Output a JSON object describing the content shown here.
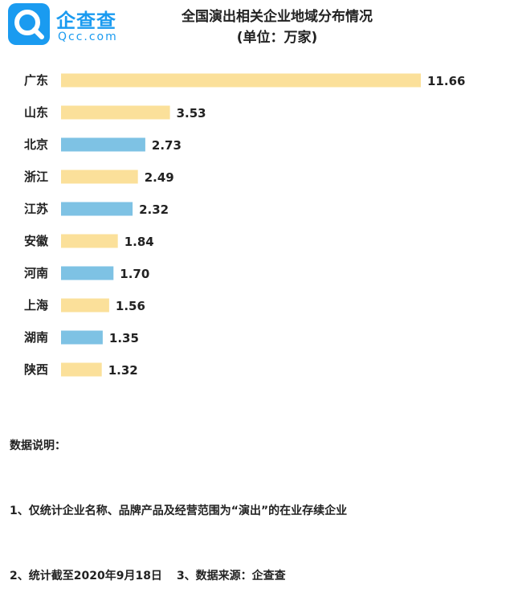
{
  "brand": {
    "name": "企查查",
    "domain": "Qcc.com",
    "icon": "magnifier-logo-icon",
    "color": "#1a9bf0"
  },
  "header": {
    "title": "全国演出相关企业地域分布情况",
    "subtitle": "(单位：万家)"
  },
  "chart_data": {
    "type": "bar",
    "orientation": "horizontal",
    "title": "全国演出相关企业地域分布情况",
    "subtitle": "(单位：万家)",
    "categories": [
      "广东",
      "山东",
      "北京",
      "浙江",
      "江苏",
      "安徽",
      "河南",
      "上海",
      "湖南",
      "陕西"
    ],
    "values": [
      11.66,
      3.53,
      2.73,
      2.49,
      2.32,
      1.84,
      1.7,
      1.56,
      1.35,
      1.32
    ],
    "value_labels": [
      "11.66",
      "3.53",
      "2.73",
      "2.49",
      "2.32",
      "1.84",
      "1.70",
      "1.56",
      "1.35",
      "1.32"
    ],
    "colors": [
      "#fbe09a",
      "#fbe09a",
      "#7ec2e4",
      "#fbe09a",
      "#7ec2e4",
      "#fbe09a",
      "#7ec2e4",
      "#fbe09a",
      "#7ec2e4",
      "#fbe09a"
    ],
    "xlim": [
      0,
      11.66
    ],
    "grid": false,
    "legend": "none"
  },
  "notes": {
    "heading": "数据说明：",
    "line1": "1、仅统计企业名称、品牌产品及经营范围为“演出”的在业存续企业",
    "line2a": "2、统计截至2020年9月18日",
    "line2b": "3、数据来源：企查查"
  }
}
